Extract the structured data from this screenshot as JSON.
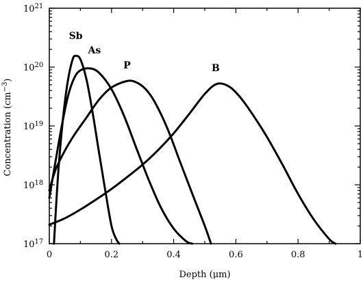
{
  "chart_data": {
    "type": "line",
    "title": "",
    "xlabel": "Depth (μm)",
    "ylabel": "Concentration (cm",
    "ylabel_sup": "−3",
    "ylabel_end": ")",
    "xlim": [
      0,
      1
    ],
    "ylim_log10": [
      17,
      21
    ],
    "yscale": "log",
    "grid": false,
    "legend": "none",
    "x_ticks": [
      {
        "value": 0,
        "label": "0"
      },
      {
        "value": 0.2,
        "label": "0.2"
      },
      {
        "value": 0.4,
        "label": "0.4"
      },
      {
        "value": 0.6,
        "label": "0.6"
      },
      {
        "value": 0.8,
        "label": "0.8"
      },
      {
        "value": 1,
        "label": "1"
      }
    ],
    "y_ticks": [
      {
        "exp": 17,
        "base": "10",
        "sup": "17"
      },
      {
        "exp": 18,
        "base": "10",
        "sup": "18"
      },
      {
        "exp": 19,
        "base": "10",
        "sup": "19"
      },
      {
        "exp": 20,
        "base": "10",
        "sup": "20"
      },
      {
        "exp": 21,
        "base": "10",
        "sup": "21"
      }
    ],
    "series": [
      {
        "name": "Sb",
        "x": [
          0.015,
          0.02,
          0.03,
          0.045,
          0.06,
          0.075,
          0.085,
          0.1,
          0.12,
          0.14,
          0.16,
          0.18,
          0.2,
          0.215,
          0.225
        ],
        "y": [
          1e+17,
          3e+17,
          2e+18,
          1.5e+19,
          6e+19,
          1.35e+20,
          1.55e+20,
          1.35e+20,
          6e+19,
          1.6e+19,
          3.5e+18,
          8e+17,
          2e+17,
          1.2e+17,
          1e+17
        ]
      },
      {
        "name": "As",
        "x": [
          0.0,
          0.02,
          0.04,
          0.06,
          0.08,
          0.1,
          0.13,
          0.16,
          0.2,
          0.24,
          0.28,
          0.32,
          0.36,
          0.4,
          0.44,
          0.46
        ],
        "y": [
          6e+17,
          2.5e+18,
          1e+19,
          3.2e+19,
          6.5e+19,
          8.8e+19,
          9.5e+19,
          8e+19,
          4.2e+19,
          1.5e+19,
          4.2e+18,
          1.2e+18,
          4e+17,
          1.8e+17,
          1.1e+17,
          1e+17
        ]
      },
      {
        "name": "P",
        "x": [
          0.0,
          0.02,
          0.05,
          0.08,
          0.12,
          0.16,
          0.2,
          0.25,
          0.28,
          0.31,
          0.34,
          0.38,
          0.42,
          0.46,
          0.5,
          0.52
        ],
        "y": [
          8e+17,
          1.8e+18,
          3.8e+18,
          7e+18,
          1.4e+19,
          2.8e+19,
          4.5e+19,
          5.8e+19,
          5.5e+19,
          4.2e+19,
          2.5e+19,
          9e+18,
          2.5e+18,
          7e+17,
          2e+17,
          1e+17
        ]
      },
      {
        "name": "B",
        "x": [
          0.0,
          0.05,
          0.1,
          0.15,
          0.2,
          0.25,
          0.3,
          0.35,
          0.4,
          0.45,
          0.5,
          0.54,
          0.58,
          0.62,
          0.66,
          0.7,
          0.75,
          0.8,
          0.85,
          0.9,
          0.92
        ],
        "y": [
          2.1e+17,
          2.7e+17,
          3.8e+17,
          5.6e+17,
          8.5e+17,
          1.35e+18,
          2.2e+18,
          3.9e+18,
          7.5e+18,
          1.6e+19,
          3.5e+19,
          5.2e+19,
          4.6e+19,
          2.8e+19,
          1.4e+19,
          6.5e+18,
          2.2e+18,
          7e+17,
          2.6e+17,
          1.2e+17,
          1e+17
        ]
      }
    ],
    "annotations": [
      {
        "text": "Sb",
        "x": 0.085,
        "y": 3e+20
      },
      {
        "text": "As",
        "x": 0.145,
        "y": 1.7e+20
      },
      {
        "text": "P",
        "x": 0.25,
        "y": 9.5e+19
      },
      {
        "text": "B",
        "x": 0.535,
        "y": 8.5e+19
      }
    ]
  }
}
